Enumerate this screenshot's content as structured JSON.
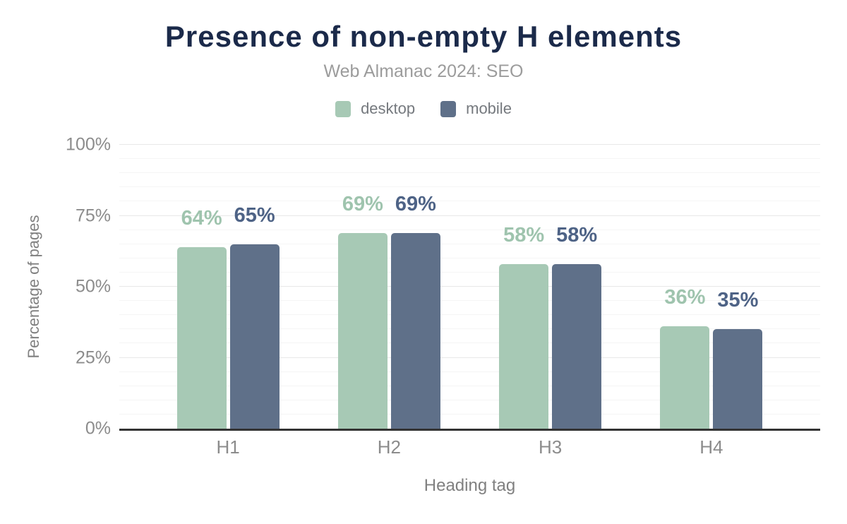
{
  "chart_data": {
    "type": "bar",
    "title": "Presence of non-empty H elements",
    "subtitle": "Web Almanac 2024: SEO",
    "categories": [
      "H1",
      "H2",
      "H3",
      "H4"
    ],
    "series": [
      {
        "name": "desktop",
        "color": "#a7c9b5",
        "label_color": "#9fc4ae",
        "values": [
          64,
          69,
          58,
          36
        ]
      },
      {
        "name": "mobile",
        "color": "#5f7089",
        "label_color": "#4e6386",
        "values": [
          65,
          69,
          58,
          35
        ]
      }
    ],
    "xlabel": "Heading tag",
    "ylabel": "Percentage of pages",
    "ylim": [
      0,
      100
    ],
    "ytick_step_major": 25,
    "ytick_step_minor": 5,
    "ytick_labels": [
      "0%",
      "25%",
      "50%",
      "75%",
      "100%"
    ],
    "value_suffix": "%",
    "legend_position": "top",
    "grid": true
  },
  "style": {
    "background": "#ffffff",
    "title_color": "#1b2a4a",
    "subtitle_color": "#9c9c9c",
    "legend_text_color": "#75797e",
    "tick_color": "#8c8c8c",
    "axis_title_color": "#808080",
    "axis_line_color": "#333333",
    "grid_major_color": "#e8e8e8",
    "grid_minor_color": "#f5f5f5"
  }
}
